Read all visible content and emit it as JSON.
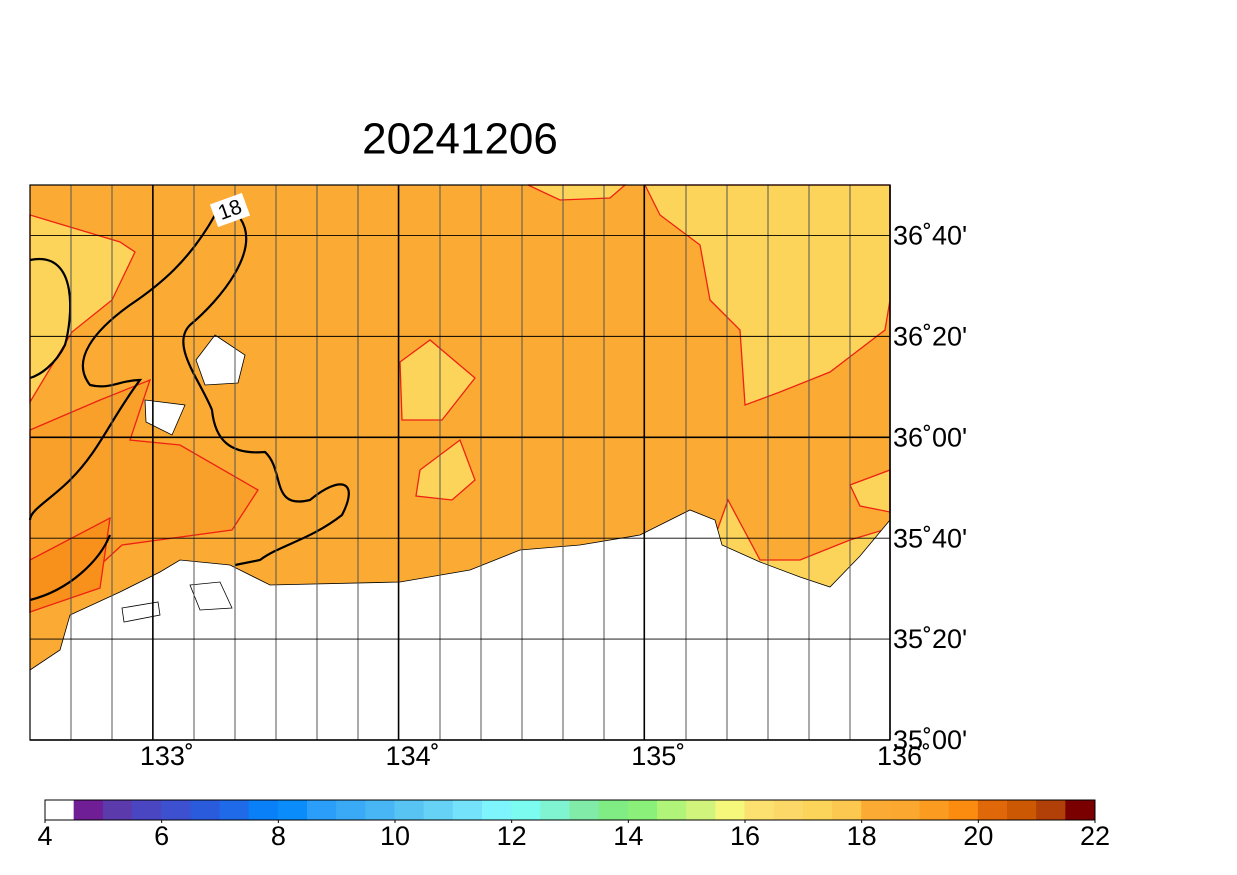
{
  "chart_data": {
    "type": "map",
    "title": "20241206",
    "xlim": [
      132.5,
      136
    ],
    "ylim": [
      35,
      36.8333
    ],
    "xticks": [
      {
        "value": 133,
        "label": "133˚"
      },
      {
        "value": 134,
        "label": "134˚"
      },
      {
        "value": 135,
        "label": "135˚"
      },
      {
        "value": 136,
        "label": "136˚"
      }
    ],
    "yticks": [
      {
        "value": 35,
        "label": "35˚00'"
      },
      {
        "value": 35.3333,
        "label": "35˚20'"
      },
      {
        "value": 35.6667,
        "label": "35˚40'"
      },
      {
        "value": 36,
        "label": "36˚00'"
      },
      {
        "value": 36.3333,
        "label": "36˚20'"
      },
      {
        "value": 36.6667,
        "label": "36˚40'"
      }
    ],
    "contour_label": 18,
    "colorbar": {
      "lim": [
        4,
        22
      ],
      "ticks": [
        4,
        6,
        8,
        10,
        12,
        14,
        16,
        18,
        20,
        22
      ],
      "colors": [
        "#ffffff",
        "#6f1e96",
        "#5b3aab",
        "#4a45c0",
        "#3c50d0",
        "#2a5bdc",
        "#1e6ae8",
        "#0a80f8",
        "#0a8cfa",
        "#2a9ef8",
        "#3aaaf6",
        "#48b6f4",
        "#58c4f4",
        "#66d2f6",
        "#74e2fa",
        "#7ef4fc",
        "#7cfcf0",
        "#80f4d0",
        "#80eca8",
        "#80ec84",
        "#8af07a",
        "#b0f47a",
        "#d0f47c",
        "#f6f87c",
        "#fce070",
        "#fcd868",
        "#fdd45a",
        "#fcc850",
        "#fbab34",
        "#fba830",
        "#fb9c20",
        "#fb8c10",
        "#e06808",
        "#cc5804",
        "#b04008",
        "#7a0000"
      ]
    }
  }
}
